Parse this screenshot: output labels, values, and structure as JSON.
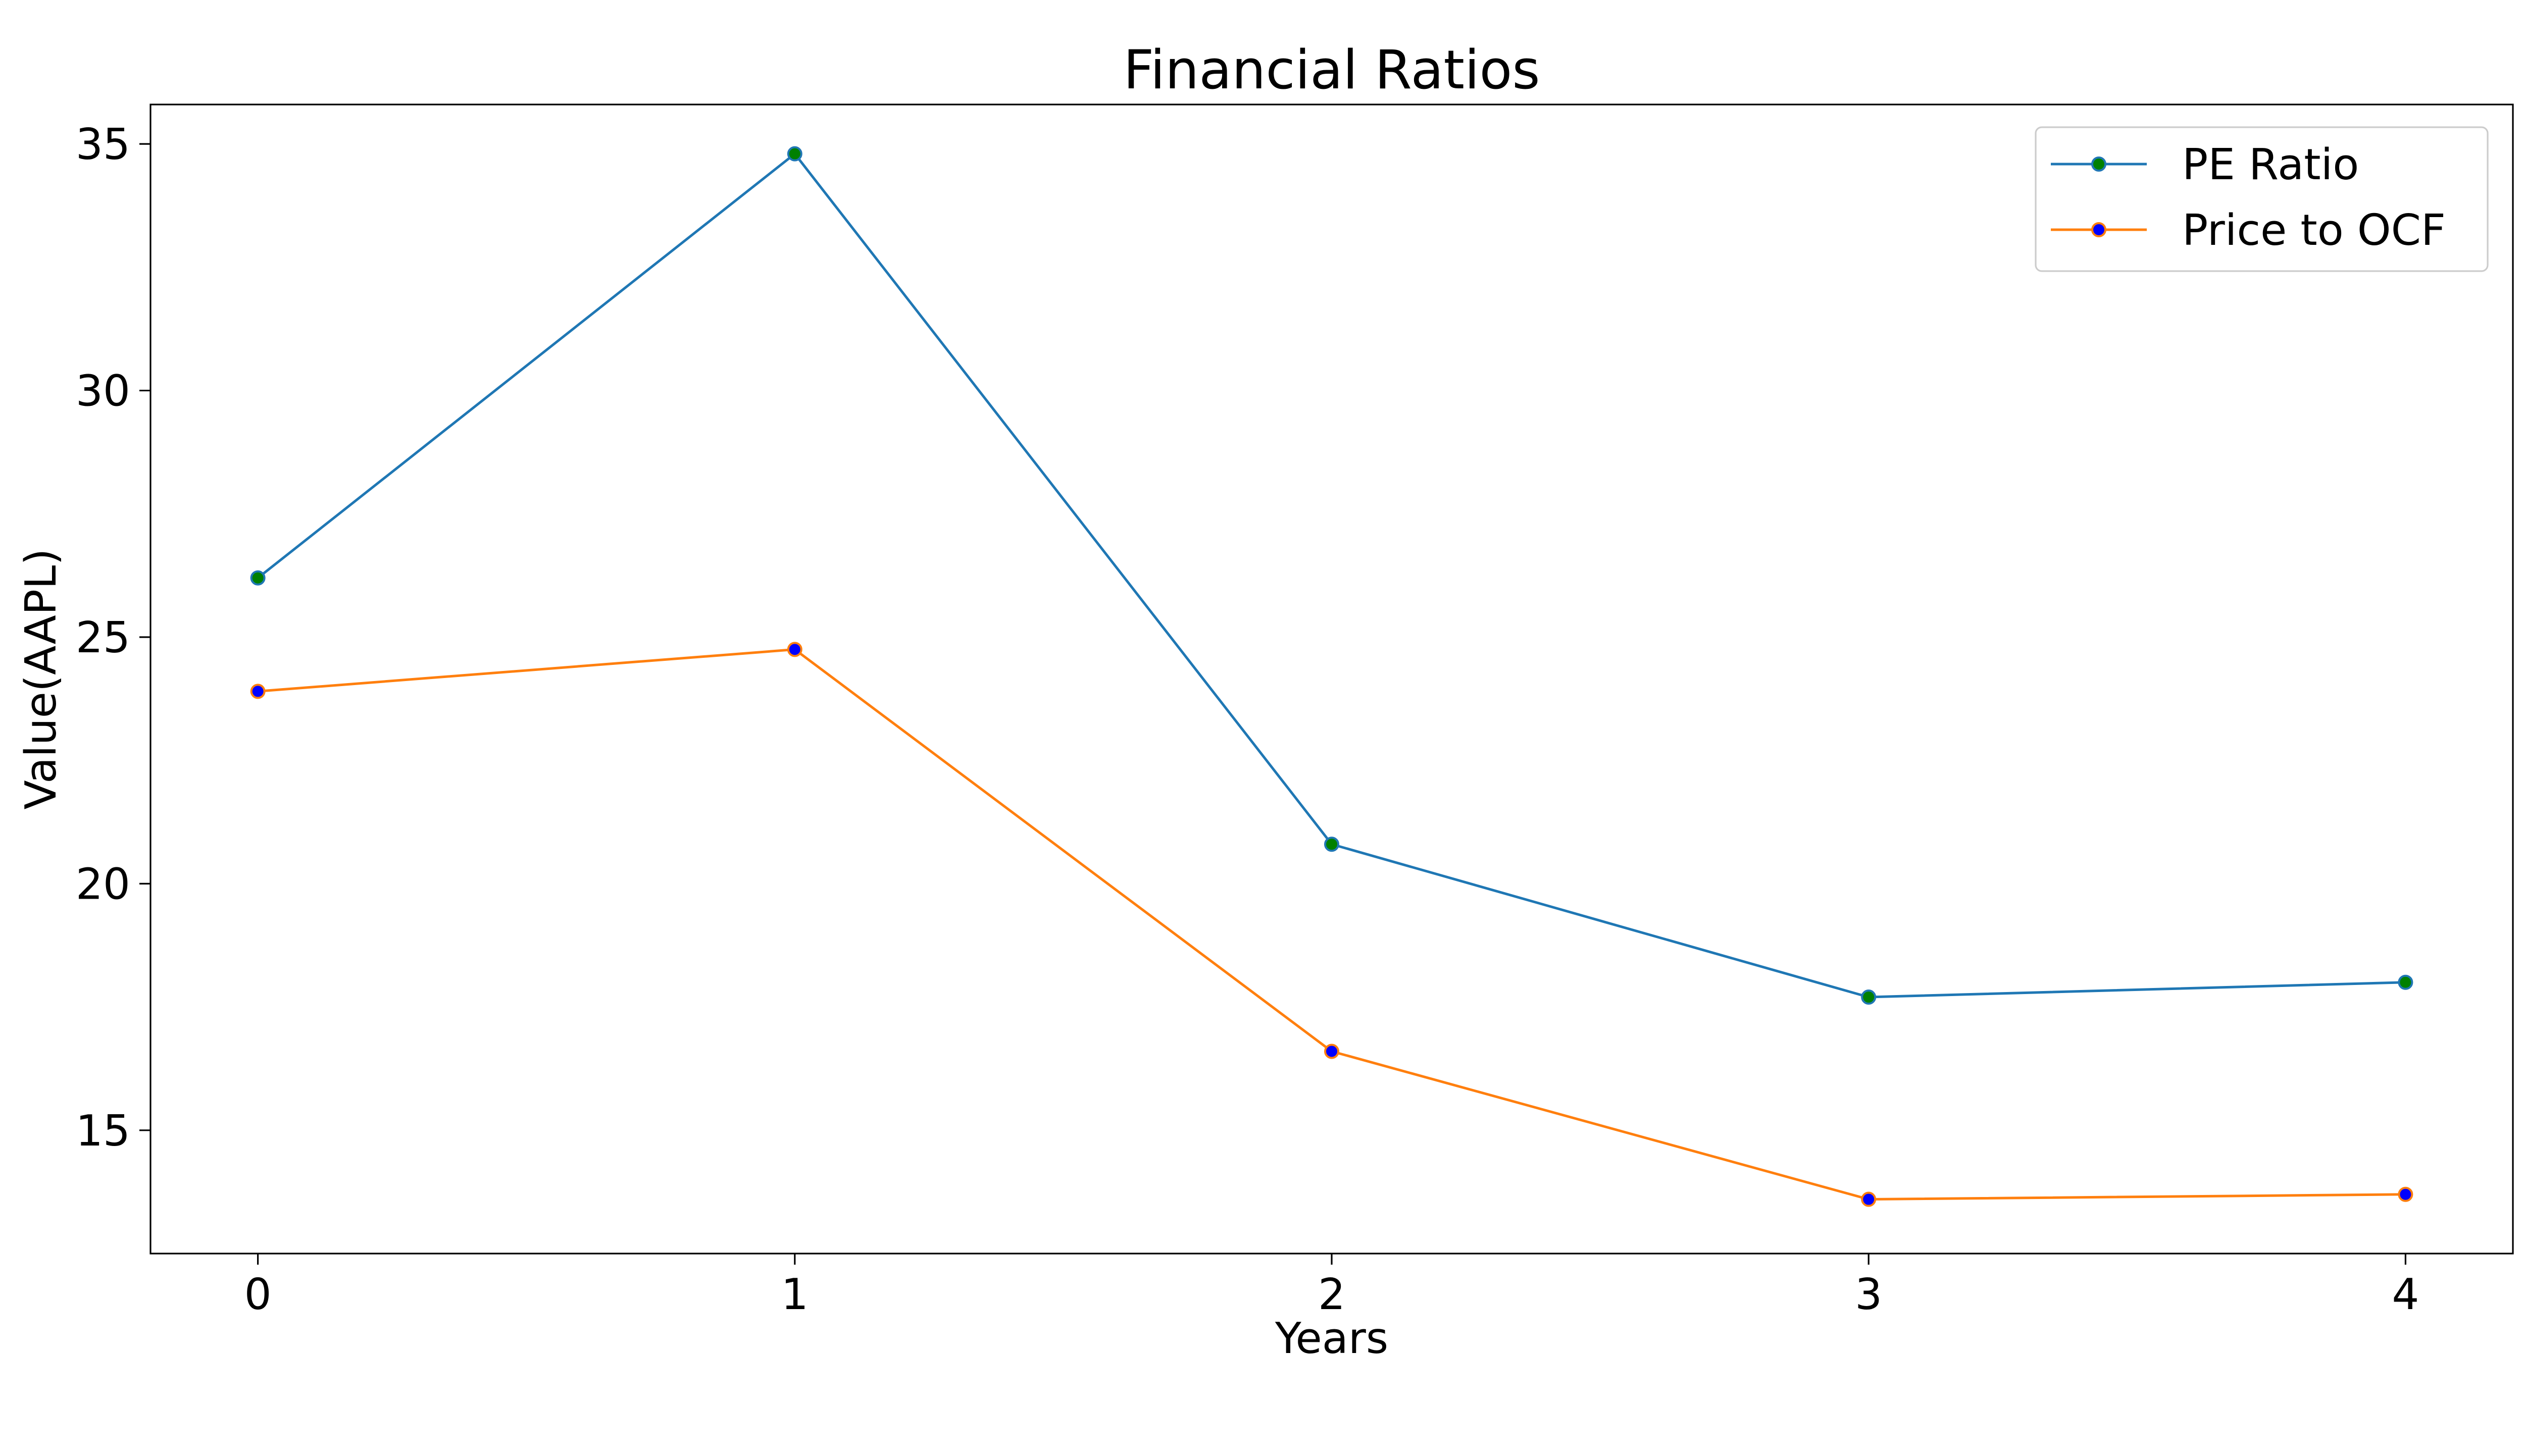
{
  "chart_data": {
    "type": "line",
    "title": "Financial Ratios",
    "xlabel": "Years",
    "ylabel": "Value(AAPL)",
    "x": [
      0,
      1,
      2,
      3,
      4
    ],
    "x_ticks": [
      "0",
      "1",
      "2",
      "3",
      "4"
    ],
    "y_ticks": [
      "15",
      "20",
      "25",
      "30",
      "35"
    ],
    "y_tick_values": [
      15,
      20,
      25,
      30,
      35
    ],
    "xlim": [
      -0.2,
      4.2
    ],
    "ylim": [
      12.5,
      35.8
    ],
    "grid": false,
    "legend_position": "top-right",
    "series": [
      {
        "name": "PE Ratio",
        "values": [
          26.2,
          34.8,
          20.8,
          17.7,
          18.0
        ],
        "line_color": "#1f77b4",
        "marker_color": "#008000"
      },
      {
        "name": "Price to OCF",
        "values": [
          23.9,
          24.75,
          16.6,
          13.6,
          13.7
        ],
        "line_color": "#ff7f0e",
        "marker_color": "#0000ff"
      }
    ]
  }
}
